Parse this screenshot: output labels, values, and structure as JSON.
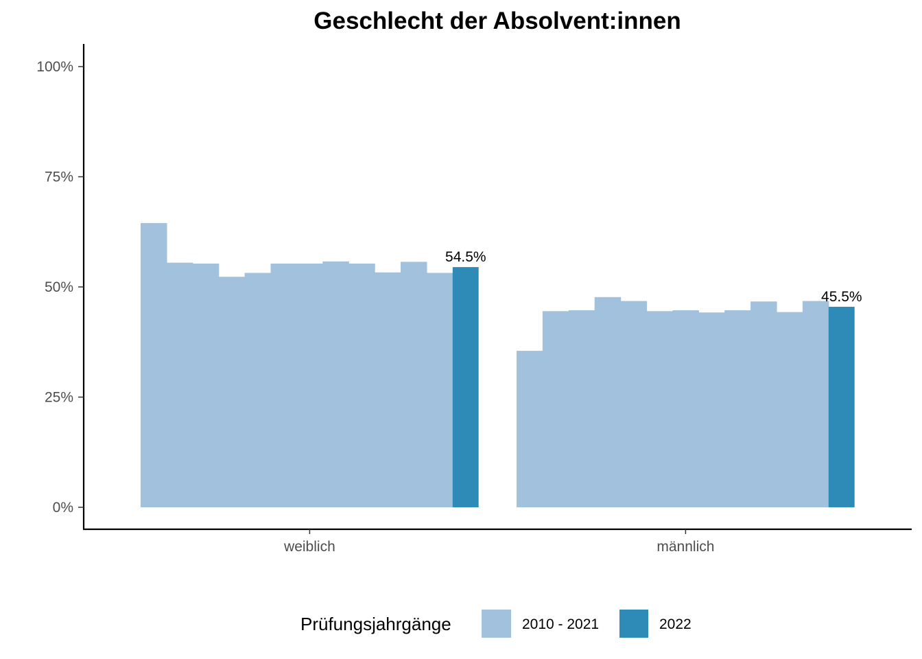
{
  "chart_data": {
    "type": "bar",
    "title": "Geschlecht der Absolvent:innen",
    "categories": [
      "weiblich",
      "männlich"
    ],
    "ylim": [
      0,
      1
    ],
    "yticks": [
      {
        "value": 0,
        "label": "0%"
      },
      {
        "value": 0.25,
        "label": "25%"
      },
      {
        "value": 0.5,
        "label": "50%"
      },
      {
        "value": 0.75,
        "label": "75%"
      },
      {
        "value": 1.0,
        "label": "100%"
      }
    ],
    "grid": false,
    "legend": {
      "title": "Prüfungsjahrgänge",
      "placement": "bottom",
      "entries": [
        {
          "label": "2010 - 2021",
          "color": "#a1c1dc"
        },
        {
          "label": "2022",
          "color": "#2e8bb8"
        }
      ]
    },
    "groups": [
      {
        "category": "weiblich",
        "history_values": [
          0.645,
          0.555,
          0.553,
          0.523,
          0.532,
          0.553,
          0.553,
          0.558,
          0.553,
          0.533,
          0.557,
          0.532
        ],
        "current_value": 0.545,
        "current_label": "54.5%"
      },
      {
        "category": "männlich",
        "history_values": [
          0.355,
          0.445,
          0.447,
          0.477,
          0.468,
          0.445,
          0.447,
          0.442,
          0.447,
          0.467,
          0.443,
          0.468
        ],
        "current_value": 0.455,
        "current_label": "45.5%"
      }
    ]
  }
}
